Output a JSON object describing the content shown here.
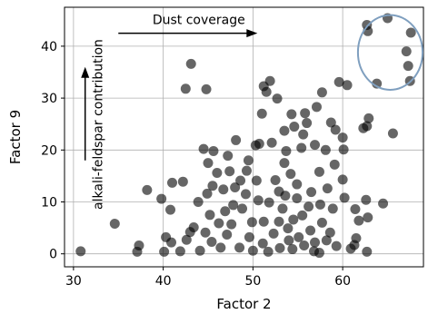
{
  "chart_data": {
    "type": "scatter",
    "xlabel": "Factor 2",
    "ylabel": "Factor 9",
    "xlim": [
      29,
      69
    ],
    "ylim": [
      -2.5,
      47.5
    ],
    "xticks": [
      30,
      40,
      50,
      60
    ],
    "yticks": [
      0,
      10,
      20,
      30,
      40
    ],
    "grid": true,
    "point_color": "#000000",
    "point_alpha": 0.6,
    "annotations": {
      "dust": {
        "text": "Dust coverage",
        "arrow_from": [
          35,
          42.5
        ],
        "arrow_to": [
          50.5,
          42.5
        ]
      },
      "alkali": {
        "text": "alkali-feldspar contribution",
        "arrow_from": [
          31.3,
          18
        ],
        "arrow_to": [
          31.3,
          36
        ]
      },
      "ellipse": {
        "center": [
          65.3,
          38.8
        ],
        "rx_data": 3.6,
        "ry_data": 7.2,
        "color": "#7f9fbf"
      }
    },
    "points": [
      [
        30.8,
        0.5
      ],
      [
        34.6,
        5.8
      ],
      [
        37.1,
        0.4
      ],
      [
        37.3,
        1.6
      ],
      [
        38.2,
        12.3
      ],
      [
        39.8,
        10.6
      ],
      [
        40.1,
        0.4
      ],
      [
        40.3,
        3.2
      ],
      [
        40.8,
        8.5
      ],
      [
        41.0,
        13.7
      ],
      [
        40.9,
        2.2
      ],
      [
        42.2,
        13.9
      ],
      [
        42.5,
        31.8
      ],
      [
        43.1,
        36.6
      ],
      [
        44.8,
        31.7
      ],
      [
        44.5,
        20.2
      ],
      [
        45.0,
        17.5
      ],
      [
        45.6,
        19.8
      ],
      [
        46.0,
        15.6
      ],
      [
        47.2,
        18.9
      ],
      [
        48.1,
        21.9
      ],
      [
        50.3,
        20.9
      ],
      [
        51.0,
        27.0
      ],
      [
        51.2,
        32.3
      ],
      [
        51.5,
        31.2
      ],
      [
        51.9,
        33.3
      ],
      [
        52.7,
        29.9
      ],
      [
        53.5,
        23.7
      ],
      [
        54.6,
        24.5
      ],
      [
        54.3,
        26.9
      ],
      [
        55.4,
        20.4
      ],
      [
        55.8,
        27.1
      ],
      [
        55.6,
        23.0
      ],
      [
        56.0,
        25.2
      ],
      [
        56.9,
        21.0
      ],
      [
        57.7,
        31.1
      ],
      [
        57.1,
        28.3
      ],
      [
        58.1,
        20.0
      ],
      [
        58.7,
        25.3
      ],
      [
        59.6,
        33.1
      ],
      [
        59.2,
        23.9
      ],
      [
        60.1,
        20.1
      ],
      [
        60.5,
        32.5
      ],
      [
        60.0,
        22.4
      ],
      [
        60.0,
        14.3
      ],
      [
        60.2,
        10.8
      ],
      [
        61.4,
        8.6
      ],
      [
        62.6,
        10.4
      ],
      [
        62.3,
        24.2
      ],
      [
        62.9,
        26.1
      ],
      [
        62.7,
        24.6
      ],
      [
        62.7,
        44.1
      ],
      [
        62.8,
        42.9
      ],
      [
        63.8,
        32.8
      ],
      [
        64.5,
        9.7
      ],
      [
        65.0,
        45.4
      ],
      [
        65.6,
        23.2
      ],
      [
        67.1,
        39.0
      ],
      [
        67.3,
        36.2
      ],
      [
        67.5,
        33.3
      ],
      [
        67.6,
        42.6
      ],
      [
        62.8,
        7.0
      ],
      [
        61.8,
        6.4
      ],
      [
        61.5,
        3.0
      ],
      [
        60.9,
        1.0
      ],
      [
        61.3,
        1.7
      ],
      [
        62.7,
        0.4
      ],
      [
        57.4,
        0.2
      ],
      [
        56.5,
        11.9
      ],
      [
        57.4,
        15.8
      ],
      [
        59.1,
        17.2
      ],
      [
        58.3,
        12.6
      ],
      [
        57.5,
        9.5
      ],
      [
        53.5,
        17.5
      ],
      [
        54.2,
        15.4
      ],
      [
        54.9,
        13.4
      ],
      [
        53.7,
        19.8
      ],
      [
        52.1,
        21.4
      ],
      [
        50.7,
        21.2
      ],
      [
        49.5,
        18.0
      ],
      [
        49.3,
        16.0
      ],
      [
        48.6,
        14.1
      ],
      [
        47.4,
        15.9
      ],
      [
        46.7,
        12.4
      ],
      [
        45.5,
        13.1
      ],
      [
        44.9,
        11.6
      ],
      [
        43.9,
        10.0
      ],
      [
        43.4,
        5.1
      ],
      [
        42.6,
        2.7
      ],
      [
        45.2,
        7.5
      ],
      [
        46.2,
        5.9
      ],
      [
        47.8,
        9.4
      ],
      [
        49.2,
        11.5
      ],
      [
        50.6,
        10.3
      ],
      [
        51.8,
        9.9
      ],
      [
        52.9,
        12.0
      ],
      [
        53.6,
        11.2
      ],
      [
        54.9,
        10.7
      ],
      [
        56.2,
        9.1
      ],
      [
        55.5,
        7.4
      ],
      [
        54.5,
        6.6
      ],
      [
        53.3,
        8.7
      ],
      [
        51.2,
        6.2
      ],
      [
        49.9,
        6.1
      ],
      [
        48.8,
        8.7
      ],
      [
        47.1,
        3.7
      ],
      [
        48.5,
        1.2
      ],
      [
        50.0,
        0.6
      ],
      [
        51.7,
        0.4
      ],
      [
        53.0,
        1.1
      ],
      [
        54.4,
        0.9
      ],
      [
        55.7,
        1.6
      ],
      [
        56.8,
        0.5
      ],
      [
        58.2,
        2.6
      ],
      [
        59.3,
        1.5
      ],
      [
        58.6,
        4.1
      ],
      [
        57.7,
        6.0
      ],
      [
        56.4,
        4.5
      ],
      [
        52.3,
        3.9
      ],
      [
        51.1,
        2.0
      ],
      [
        49.6,
        3.2
      ],
      [
        47.6,
        5.7
      ],
      [
        46.4,
        1.2
      ],
      [
        45.4,
        2.3
      ],
      [
        44.1,
        0.6
      ],
      [
        43.0,
        4.2
      ],
      [
        41.9,
        0.5
      ],
      [
        44.7,
        4.1
      ],
      [
        46.9,
        8.2
      ],
      [
        48.0,
        12.8
      ],
      [
        50.4,
        14.1
      ],
      [
        52.5,
        14.2
      ],
      [
        53.9,
        4.9
      ],
      [
        55.1,
        3.2
      ],
      [
        56.9,
        2.2
      ],
      [
        58.9,
        8.7
      ],
      [
        54.0,
        2.6
      ],
      [
        52.9,
        6.2
      ]
    ]
  }
}
